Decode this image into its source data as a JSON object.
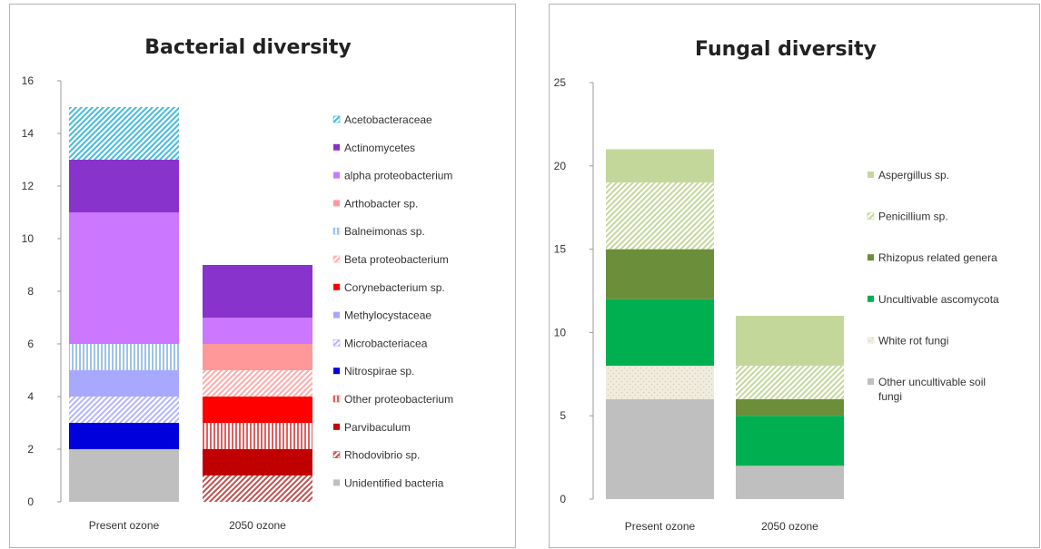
{
  "chart_data": [
    {
      "type": "bar",
      "stacked": true,
      "title": "Bacterial diversity",
      "xlabel": "",
      "ylabel": "",
      "categories": [
        "Present ozone",
        "2050 ozone"
      ],
      "ylim": [
        0,
        16
      ],
      "yticks": [
        "0",
        "2",
        "4",
        "6",
        "8",
        "10",
        "12",
        "14",
        "16"
      ],
      "grid": false,
      "legend_position": "right",
      "series": [
        {
          "name": "Unidentified bacteria",
          "values": [
            2,
            0
          ],
          "color": "#bfbfbf",
          "pattern": "solid"
        },
        {
          "name": "Rhodovibrio sp.",
          "values": [
            0,
            1
          ],
          "color": "#c0504d",
          "pattern": "diagonal"
        },
        {
          "name": "Parvibaculum",
          "values": [
            0,
            1
          ],
          "color": "#c00000",
          "pattern": "solid"
        },
        {
          "name": "Other proteobacterium",
          "values": [
            0,
            1
          ],
          "color": "#e06060",
          "pattern": "vertical"
        },
        {
          "name": "Corynebacterium sp.",
          "values": [
            0,
            1
          ],
          "color": "#ff0000",
          "pattern": "solid"
        },
        {
          "name": "Nitrospirae sp.",
          "values": [
            1,
            0
          ],
          "color": "#0000dd",
          "pattern": "solid"
        },
        {
          "name": "Microbacteriacea",
          "values": [
            1,
            0
          ],
          "color": "#b4b4ff",
          "pattern": "diagonal"
        },
        {
          "name": "Methylocystaceae",
          "values": [
            1,
            0
          ],
          "color": "#a8a8ff",
          "pattern": "solid"
        },
        {
          "name": "Beta proteobacterium",
          "values": [
            0,
            1
          ],
          "color": "#ffaaaa",
          "pattern": "diagonal"
        },
        {
          "name": "Arthobacter sp.",
          "values": [
            0,
            1
          ],
          "color": "#ff9999",
          "pattern": "solid"
        },
        {
          "name": "Balneimonas sp.",
          "values": [
            1,
            0
          ],
          "color": "#9fc3e8",
          "pattern": "vertical"
        },
        {
          "name": "alpha proteobacterium",
          "values": [
            5,
            1
          ],
          "color": "#cc77ff",
          "pattern": "solid"
        },
        {
          "name": "Actinomycetes",
          "values": [
            2,
            2
          ],
          "color": "#8833cc",
          "pattern": "solid"
        },
        {
          "name": "Acetobacteraceae",
          "values": [
            2,
            0
          ],
          "color": "#44bbdd",
          "pattern": "diagonal"
        }
      ],
      "legend_order": [
        "Acetobacteraceae",
        "Actinomycetes",
        "alpha proteobacterium",
        "Arthobacter sp.",
        "Balneimonas sp.",
        "Beta proteobacterium",
        "Corynebacterium sp.",
        "Methylocystaceae",
        "Microbacteriacea",
        "Nitrospirae sp.",
        "Other proteobacterium",
        "Parvibaculum",
        "Rhodovibrio sp.",
        "Unidentified bacteria"
      ]
    },
    {
      "type": "bar",
      "stacked": true,
      "title": "Fungal diversity",
      "xlabel": "",
      "ylabel": "",
      "categories": [
        "Present ozone",
        "2050 ozone"
      ],
      "ylim": [
        0,
        25
      ],
      "yticks": [
        "0",
        "5",
        "10",
        "15",
        "20",
        "25"
      ],
      "grid": false,
      "legend_position": "right",
      "series": [
        {
          "name": "Other uncultivable soil fungi",
          "values": [
            6,
            2
          ],
          "color": "#bfbfbf",
          "pattern": "solid"
        },
        {
          "name": "White rot fungi",
          "values": [
            2,
            0
          ],
          "color": "#f0ede0",
          "pattern": "dotted"
        },
        {
          "name": "Uncultivable ascomycota",
          "values": [
            4,
            3
          ],
          "color": "#00b050",
          "pattern": "solid"
        },
        {
          "name": "Rhizopus related genera",
          "values": [
            3,
            1
          ],
          "color": "#6b8e3a",
          "pattern": "solid"
        },
        {
          "name": "Penicillium sp.",
          "values": [
            4,
            2
          ],
          "color": "#c4d79b",
          "pattern": "diagonal"
        },
        {
          "name": "Aspergillus sp.",
          "values": [
            2,
            3
          ],
          "color": "#c4d79b",
          "pattern": "solid"
        }
      ],
      "legend_order": [
        "Aspergillus sp.",
        "Penicillium sp.",
        "Rhizopus related genera",
        "Uncultivable ascomycota",
        "White rot fungi",
        "Other uncultivable soil fungi"
      ]
    }
  ]
}
